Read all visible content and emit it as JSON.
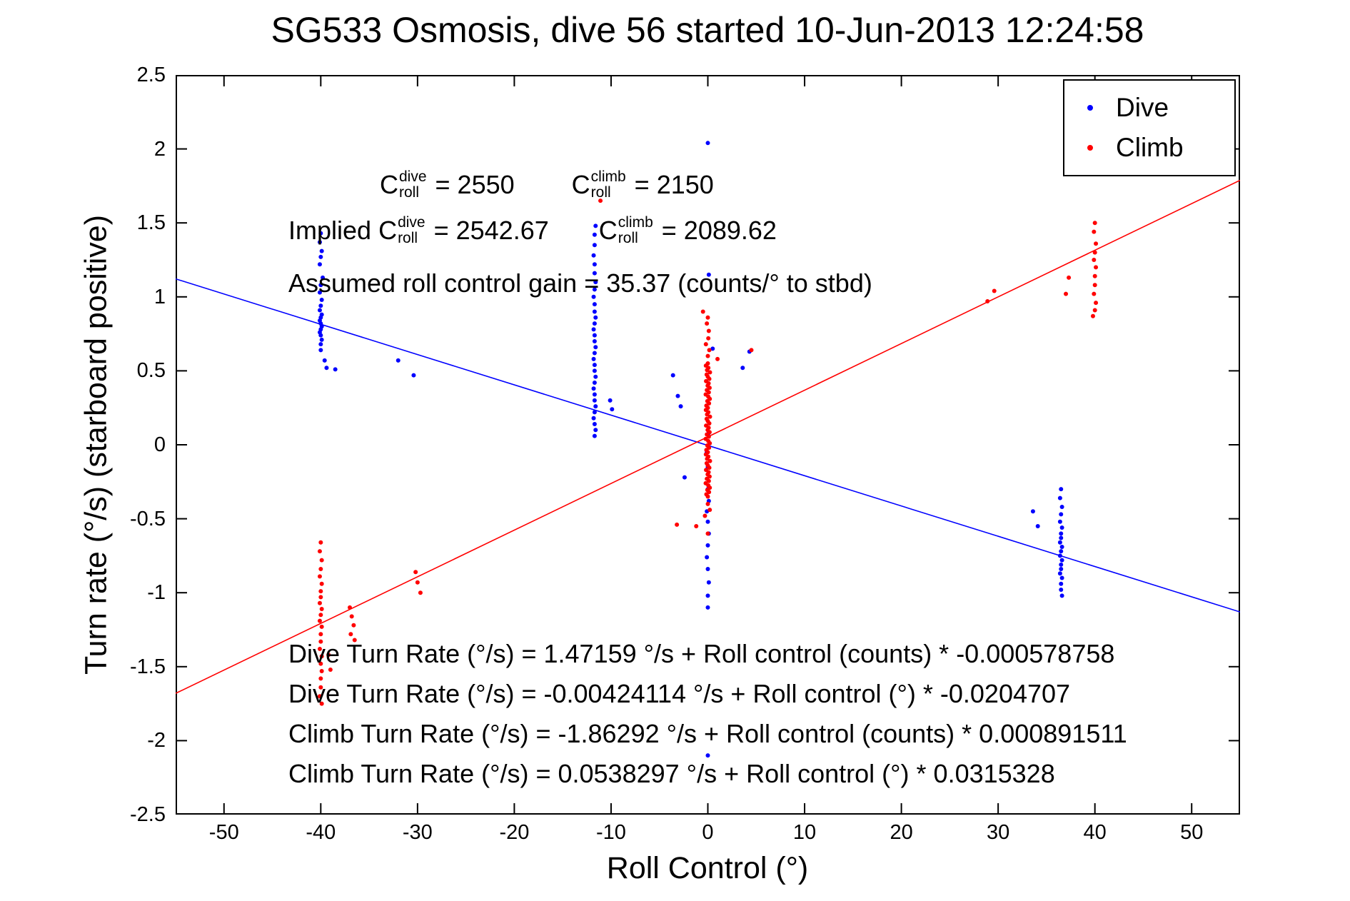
{
  "chart_data": {
    "type": "scatter",
    "title": "SG533 Osmosis, dive 56 started 10-Jun-2013 12:24:58",
    "xlabel": "Roll Control (°)",
    "ylabel": "Turn rate (°/s) (starboard positive)",
    "xlim": [
      -55,
      55
    ],
    "ylim": [
      -2.5,
      2.5
    ],
    "xticks": [
      -50,
      -40,
      -30,
      -20,
      -10,
      0,
      10,
      20,
      30,
      40,
      50
    ],
    "yticks": [
      -2.5,
      -2,
      -1.5,
      -1,
      -0.5,
      0,
      0.5,
      1,
      1.5,
      2,
      2.5
    ],
    "grid": false,
    "legend_position": "top-right",
    "series": [
      {
        "name": "Dive",
        "color": "#0000ff",
        "marker": "point",
        "points": [
          [
            -40.0,
            1.43
          ],
          [
            -40.1,
            1.37
          ],
          [
            -39.9,
            1.31
          ],
          [
            -40.0,
            1.27
          ],
          [
            -40.1,
            1.22
          ],
          [
            -39.8,
            1.13
          ],
          [
            -40.0,
            1.08
          ],
          [
            -40.1,
            1.03
          ],
          [
            -39.9,
            0.98
          ],
          [
            -40.0,
            0.94
          ],
          [
            -40.1,
            0.91
          ],
          [
            -39.9,
            0.88
          ],
          [
            -40.0,
            0.86
          ],
          [
            -40.1,
            0.84
          ],
          [
            -40.0,
            0.82
          ],
          [
            -39.9,
            0.8
          ],
          [
            -40.0,
            0.78
          ],
          [
            -40.1,
            0.76
          ],
          [
            -40.0,
            0.74
          ],
          [
            -39.9,
            0.71
          ],
          [
            -40.0,
            0.68
          ],
          [
            -40.0,
            0.64
          ],
          [
            -39.6,
            0.57
          ],
          [
            -39.4,
            0.52
          ],
          [
            -38.5,
            0.51
          ],
          [
            -32.0,
            0.57
          ],
          [
            -30.4,
            0.47
          ],
          [
            -11.7,
            0.06
          ],
          [
            -11.6,
            0.1
          ],
          [
            -11.7,
            0.14
          ],
          [
            -11.8,
            0.18
          ],
          [
            -11.7,
            0.22
          ],
          [
            -11.6,
            0.26
          ],
          [
            -11.7,
            0.3
          ],
          [
            -11.7,
            0.34
          ],
          [
            -11.8,
            0.38
          ],
          [
            -11.7,
            0.42
          ],
          [
            -11.6,
            0.46
          ],
          [
            -11.7,
            0.5
          ],
          [
            -11.7,
            0.54
          ],
          [
            -11.8,
            0.58
          ],
          [
            -11.7,
            0.62
          ],
          [
            -11.6,
            0.66
          ],
          [
            -11.7,
            0.7
          ],
          [
            -11.7,
            0.74
          ],
          [
            -11.8,
            0.78
          ],
          [
            -11.7,
            0.82
          ],
          [
            -11.6,
            0.86
          ],
          [
            -11.7,
            0.9
          ],
          [
            -11.7,
            0.95
          ],
          [
            -11.8,
            1.0
          ],
          [
            -11.7,
            1.05
          ],
          [
            -11.6,
            1.1
          ],
          [
            -11.7,
            1.16
          ],
          [
            -11.7,
            1.22
          ],
          [
            -11.8,
            1.28
          ],
          [
            -11.7,
            1.35
          ],
          [
            -11.7,
            1.42
          ],
          [
            -11.6,
            1.48
          ],
          [
            -10.1,
            0.3
          ],
          [
            -9.9,
            0.24
          ],
          [
            -3.6,
            0.47
          ],
          [
            -3.1,
            0.33
          ],
          [
            -2.8,
            0.26
          ],
          [
            -2.4,
            -0.22
          ],
          [
            0.0,
            2.04
          ],
          [
            0.1,
            1.15
          ],
          [
            0.5,
            0.65
          ],
          [
            3.6,
            0.52
          ],
          [
            4.3,
            0.63
          ],
          [
            0.1,
            0.08
          ],
          [
            -0.1,
            -0.05
          ],
          [
            0.0,
            -0.15
          ],
          [
            0.0,
            -0.3
          ],
          [
            0.1,
            -0.38
          ],
          [
            -0.1,
            -0.45
          ],
          [
            0.0,
            -0.52
          ],
          [
            0.1,
            -0.6
          ],
          [
            0.0,
            -0.68
          ],
          [
            -0.1,
            -0.76
          ],
          [
            0.0,
            -0.84
          ],
          [
            0.1,
            -0.93
          ],
          [
            0.0,
            -1.02
          ],
          [
            0.0,
            -1.1
          ],
          [
            0.0,
            -2.1
          ],
          [
            33.6,
            -0.45
          ],
          [
            34.1,
            -0.55
          ],
          [
            36.5,
            -0.3
          ],
          [
            36.4,
            -0.36
          ],
          [
            36.6,
            -0.42
          ],
          [
            36.5,
            -0.47
          ],
          [
            36.4,
            -0.52
          ],
          [
            36.6,
            -0.56
          ],
          [
            36.5,
            -0.6
          ],
          [
            36.5,
            -0.63
          ],
          [
            36.4,
            -0.66
          ],
          [
            36.6,
            -0.69
          ],
          [
            36.5,
            -0.72
          ],
          [
            36.4,
            -0.75
          ],
          [
            36.6,
            -0.78
          ],
          [
            36.5,
            -0.81
          ],
          [
            36.5,
            -0.84
          ],
          [
            36.4,
            -0.87
          ],
          [
            36.6,
            -0.9
          ],
          [
            36.5,
            -0.94
          ],
          [
            36.5,
            -0.98
          ],
          [
            36.6,
            -1.02
          ]
        ]
      },
      {
        "name": "Climb",
        "color": "#ff0000",
        "marker": "point",
        "points": [
          [
            0.0,
            -0.35
          ],
          [
            -0.15,
            -0.335
          ],
          [
            0.12,
            -0.32
          ],
          [
            -0.05,
            -0.305
          ],
          [
            0.2,
            -0.29
          ],
          [
            0.05,
            -0.275
          ],
          [
            -0.22,
            -0.26
          ],
          [
            0.1,
            -0.245
          ],
          [
            -0.1,
            -0.23
          ],
          [
            0.18,
            -0.215
          ],
          [
            -0.02,
            -0.2
          ],
          [
            0.08,
            -0.185
          ],
          [
            -0.18,
            -0.17
          ],
          [
            0.15,
            -0.155
          ],
          [
            0.0,
            -0.14
          ],
          [
            -0.12,
            -0.125
          ],
          [
            0.22,
            -0.11
          ],
          [
            -0.08,
            -0.095
          ],
          [
            0.05,
            -0.08
          ],
          [
            -0.2,
            -0.065
          ],
          [
            0.0,
            -0.05
          ],
          [
            -0.15,
            -0.035
          ],
          [
            0.12,
            -0.02
          ],
          [
            -0.05,
            -0.005
          ],
          [
            0.2,
            0.01
          ],
          [
            0.05,
            0.025
          ],
          [
            -0.22,
            0.04
          ],
          [
            0.1,
            0.055
          ],
          [
            -0.1,
            0.07
          ],
          [
            0.18,
            0.085
          ],
          [
            -0.02,
            0.1
          ],
          [
            0.08,
            0.115
          ],
          [
            -0.18,
            0.13
          ],
          [
            0.15,
            0.145
          ],
          [
            0.0,
            0.16
          ],
          [
            -0.12,
            0.175
          ],
          [
            0.22,
            0.19
          ],
          [
            -0.08,
            0.205
          ],
          [
            0.05,
            0.22
          ],
          [
            -0.2,
            0.235
          ],
          [
            0.0,
            0.25
          ],
          [
            -0.15,
            0.265
          ],
          [
            0.12,
            0.28
          ],
          [
            -0.05,
            0.295
          ],
          [
            0.2,
            0.31
          ],
          [
            0.05,
            0.325
          ],
          [
            -0.22,
            0.34
          ],
          [
            0.1,
            0.355
          ],
          [
            -0.1,
            0.37
          ],
          [
            0.18,
            0.385
          ],
          [
            -0.02,
            0.4
          ],
          [
            0.08,
            0.415
          ],
          [
            -0.18,
            0.43
          ],
          [
            0.15,
            0.445
          ],
          [
            0.0,
            0.46
          ],
          [
            -0.12,
            0.475
          ],
          [
            0.22,
            0.49
          ],
          [
            -0.08,
            0.505
          ],
          [
            0.05,
            0.52
          ],
          [
            -0.2,
            0.535
          ],
          [
            0.0,
            0.55
          ],
          [
            0.0,
            0.6
          ],
          [
            0.15,
            0.64
          ],
          [
            -0.2,
            0.68
          ],
          [
            0.05,
            0.72
          ],
          [
            0.1,
            0.77
          ],
          [
            -0.1,
            0.82
          ],
          [
            0.0,
            0.86
          ],
          [
            -0.5,
            0.9
          ],
          [
            1.0,
            0.58
          ],
          [
            0.0,
            -0.4
          ],
          [
            0.2,
            -0.44
          ],
          [
            -0.3,
            -0.48
          ],
          [
            -1.2,
            -0.55
          ],
          [
            -3.2,
            -0.54
          ],
          [
            0.0,
            -0.6
          ],
          [
            4.5,
            0.64
          ],
          [
            -40.0,
            -0.66
          ],
          [
            -40.1,
            -0.72
          ],
          [
            -39.9,
            -0.78
          ],
          [
            -40.0,
            -0.84
          ],
          [
            -40.1,
            -0.89
          ],
          [
            -39.9,
            -0.94
          ],
          [
            -40.0,
            -0.99
          ],
          [
            -40.0,
            -1.03
          ],
          [
            -40.1,
            -1.07
          ],
          [
            -39.9,
            -1.11
          ],
          [
            -40.0,
            -1.15
          ],
          [
            -40.1,
            -1.19
          ],
          [
            -39.9,
            -1.23
          ],
          [
            -40.0,
            -1.28
          ],
          [
            -40.0,
            -1.33
          ],
          [
            -40.1,
            -1.38
          ],
          [
            -39.9,
            -1.43
          ],
          [
            -40.0,
            -1.48
          ],
          [
            -39.9,
            -1.53
          ],
          [
            -40.0,
            -1.58
          ],
          [
            -40.0,
            -1.64
          ],
          [
            -40.1,
            -1.7
          ],
          [
            -39.9,
            -1.75
          ],
          [
            -39.2,
            -1.42
          ],
          [
            -39.0,
            -1.52
          ],
          [
            -37.0,
            -1.1
          ],
          [
            -36.8,
            -1.16
          ],
          [
            -36.6,
            -1.22
          ],
          [
            -36.9,
            -1.28
          ],
          [
            -36.5,
            -1.32
          ],
          [
            -30.2,
            -0.86
          ],
          [
            -30.0,
            -0.93
          ],
          [
            -29.7,
            -1.0
          ],
          [
            -11.1,
            1.65
          ],
          [
            28.9,
            0.97
          ],
          [
            29.6,
            1.04
          ],
          [
            37.3,
            1.13
          ],
          [
            37.0,
            1.02
          ],
          [
            40.0,
            1.5
          ],
          [
            39.9,
            1.44
          ],
          [
            40.1,
            1.36
          ],
          [
            40.0,
            1.3
          ],
          [
            39.9,
            1.25
          ],
          [
            40.1,
            1.2
          ],
          [
            40.0,
            1.14
          ],
          [
            40.0,
            1.08
          ],
          [
            39.9,
            1.02
          ],
          [
            40.1,
            0.96
          ],
          [
            40.0,
            0.91
          ],
          [
            39.8,
            0.87
          ]
        ]
      }
    ],
    "fit_lines": [
      {
        "name": "dive-fit",
        "color": "#0000ff",
        "intercept": -0.00424114,
        "slope": -0.0204707
      },
      {
        "name": "climb-fit",
        "color": "#ff0000",
        "intercept": 0.0538297,
        "slope": 0.0315328
      }
    ]
  },
  "annotations": {
    "row1": {
      "t1": "C",
      "t1sup": "dive",
      "t1sub": "roll",
      "t1eq": " = 2550",
      "t2": "C",
      "t2sup": "climb",
      "t2sub": "roll",
      "t2eq": " = 2150"
    },
    "row2": {
      "prefix": "Implied ",
      "t1": "C",
      "t1sup": "dive",
      "t1sub": "roll",
      "t1eq": " = 2542.67",
      "t2": "C",
      "t2sup": "climb",
      "t2sub": "roll",
      "t2eq": " = 2089.62"
    },
    "row3": "Assumed roll control gain = 35.37 (counts/° to stbd)",
    "fits": [
      "Dive Turn Rate (°/s) = 1.47159 °/s + Roll control (counts) * -0.000578758",
      "Dive Turn Rate (°/s) = -0.00424114 °/s + Roll control (°) * -0.0204707",
      "Climb Turn Rate (°/s) = -1.86292 °/s + Roll control (counts) * 0.000891511",
      "Climb Turn Rate (°/s) = 0.0538297 °/s + Roll control (°) * 0.0315328"
    ]
  }
}
